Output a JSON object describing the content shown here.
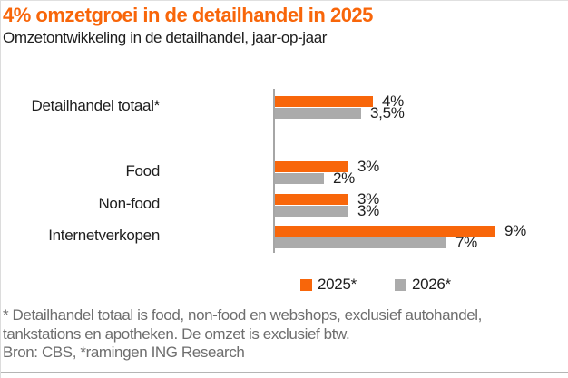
{
  "header": {
    "title": "4% omzetgroei in de detailhandel in 2025",
    "subtitle": "Omzetontwikkeling in de detailhandel, jaar-op-jaar"
  },
  "chart_data": {
    "type": "bar",
    "orientation": "horizontal",
    "title": "4% omzetgroei in de detailhandel in 2025",
    "subtitle": "Omzetontwikkeling in de detailhandel, jaar-op-jaar",
    "categories": [
      "Detailhandel totaal*",
      "Food",
      "Non-food",
      "Internetverkopen"
    ],
    "series": [
      {
        "name": "2025*",
        "color": "#F8660A",
        "values": [
          4,
          3,
          3,
          9
        ],
        "value_labels": [
          "4%",
          "3%",
          "3%",
          "9%"
        ]
      },
      {
        "name": "2026*",
        "color": "#ABABAB",
        "values": [
          3.5,
          2,
          3,
          7
        ],
        "value_labels": [
          "3,5%",
          "2%",
          "3%",
          "7%"
        ]
      }
    ],
    "value_unit": "%",
    "xlim": [
      0,
      10
    ],
    "grid": false,
    "legend_position": "bottom-center"
  },
  "footnote": {
    "lines": [
      "* Detailhandel totaal is food, non-food en webshops, exclusief autohandel,",
      "tankstations en apotheken. De omzet is exclusief btw.",
      "Bron: CBS, *ramingen ING Research"
    ]
  },
  "colors": {
    "accent_orange": "#F8660A",
    "bar_gray": "#ABABAB",
    "axis_gray": "#A6A6A6",
    "text": "#1E1E1E",
    "muted_text": "#6E6E6E",
    "bottom_rule": "#B5B5B5"
  }
}
